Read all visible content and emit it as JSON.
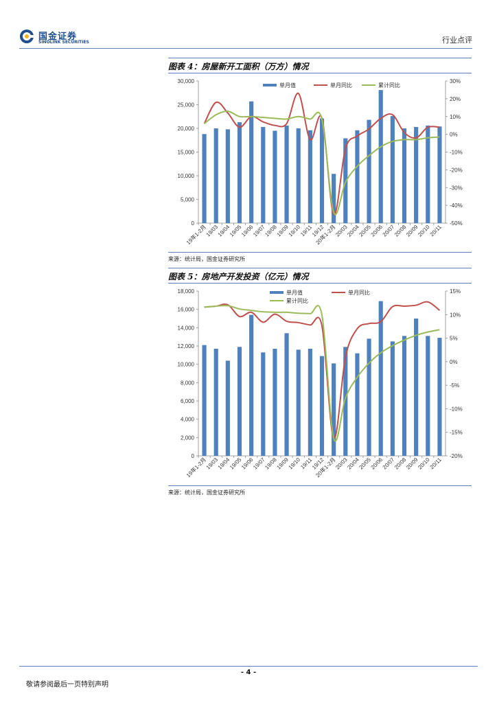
{
  "header": {
    "logo_cn": "国金证券",
    "logo_en": "SINOLINK SECURITIES",
    "report_type": "行业点评"
  },
  "footer": {
    "page_number": "- 4 -",
    "disclaimer": "敬请参阅最后一页特别声明"
  },
  "colors": {
    "bar": "#4f81bd",
    "monthly_yoy": "#c0504d",
    "cumulative_yoy": "#9bbb59",
    "rule": "#5b7fb6"
  },
  "figures": [
    {
      "title": "图表 4：房屋新开工面积（万方）情况",
      "source": "来源：统计局，国金证券研究所"
    },
    {
      "title": "图表 5：房地产开发投资（亿元）情况",
      "source": "来源：统计局，国金证券研究所"
    }
  ],
  "chart_data": [
    {
      "type": "bar",
      "categories": [
        "19年1-2月",
        "19/03",
        "19/04",
        "19/05",
        "19/06",
        "19/07",
        "19/08",
        "19/09",
        "19/10",
        "19/11",
        "19/12",
        "20年1-2月",
        "20/03",
        "20/04",
        "20/05",
        "20/06",
        "20/07",
        "20/08",
        "20/09",
        "20/10",
        "20/11"
      ],
      "series": [
        {
          "name": "单月值",
          "type": "bar",
          "axis": "left",
          "values": [
            18800,
            20000,
            19800,
            21300,
            25700,
            20300,
            19500,
            20600,
            20000,
            19600,
            22100,
            10400,
            17900,
            19600,
            21800,
            28100,
            22600,
            20000,
            20300,
            20600,
            20400
          ]
        },
        {
          "name": "单月同比",
          "type": "line",
          "axis": "right",
          "values": [
            6,
            18,
            12,
            4,
            10,
            7,
            5,
            6,
            23,
            -3,
            9,
            -45,
            -8,
            -1,
            3,
            9,
            11,
            1,
            -2,
            4,
            4
          ]
        },
        {
          "name": "累计同比",
          "type": "line",
          "axis": "right",
          "values": [
            6,
            11,
            13,
            10,
            10,
            9.5,
            9,
            8.6,
            10,
            8.6,
            8.5,
            -44,
            -27,
            -18,
            -12,
            -7,
            -4,
            -3,
            -3,
            -2,
            -1.5
          ]
        }
      ],
      "ylim_left": [
        0,
        30000
      ],
      "ylim_right": [
        -50,
        30
      ],
      "yticks_left": [
        "0",
        "5,000",
        "10,000",
        "15,000",
        "20,000",
        "25,000",
        "30,000"
      ],
      "yticks_right": [
        "-50%",
        "-40%",
        "-30%",
        "-20%",
        "-10%",
        "0%",
        "10%",
        "20%",
        "30%"
      ],
      "legend_position": "top"
    },
    {
      "type": "bar",
      "categories": [
        "19年1-2月",
        "19/03",
        "19/04",
        "19/05",
        "19/06",
        "19/07",
        "19/08",
        "19/09",
        "19/10",
        "19/11",
        "19/12",
        "20年1-2月",
        "20/03",
        "20/04",
        "20/05",
        "20/06",
        "20/07",
        "20/08",
        "20/09",
        "20/10",
        "20/11"
      ],
      "series": [
        {
          "name": "单月值",
          "type": "bar",
          "axis": "left",
          "values": [
            12100,
            11700,
            10400,
            11900,
            15400,
            11300,
            11700,
            13400,
            11600,
            11700,
            10900,
            10100,
            11900,
            11200,
            12800,
            16900,
            12500,
            13100,
            15000,
            13100,
            12900
          ]
        },
        {
          "name": "单月同比",
          "type": "line",
          "axis": "right",
          "values": [
            11.6,
            11.8,
            12.1,
            9.6,
            10.5,
            8.4,
            10.1,
            8.6,
            8.3,
            7.8,
            7.6,
            -16.3,
            1.0,
            7.0,
            8.1,
            8.5,
            11.7,
            11.8,
            12.0,
            12.7,
            10.9
          ]
        },
        {
          "name": "累计同比",
          "type": "line",
          "axis": "right",
          "values": [
            11.6,
            11.8,
            11.9,
            11.2,
            10.9,
            10.6,
            10.5,
            10.5,
            10.3,
            10.2,
            9.9,
            -16.3,
            -7.7,
            -3.3,
            -0.3,
            1.9,
            3.4,
            4.6,
            5.6,
            6.3,
            6.8
          ]
        }
      ],
      "ylim_left": [
        0,
        18000
      ],
      "ylim_right": [
        -20,
        15
      ],
      "yticks_left": [
        "0",
        "2,000",
        "4,000",
        "6,000",
        "8,000",
        "10,000",
        "12,000",
        "14,000",
        "16,000",
        "18,000"
      ],
      "yticks_right": [
        "-20%",
        "-15%",
        "-10%",
        "-5%",
        "0%",
        "5%",
        "10%",
        "15%"
      ],
      "legend_position": "top"
    }
  ]
}
